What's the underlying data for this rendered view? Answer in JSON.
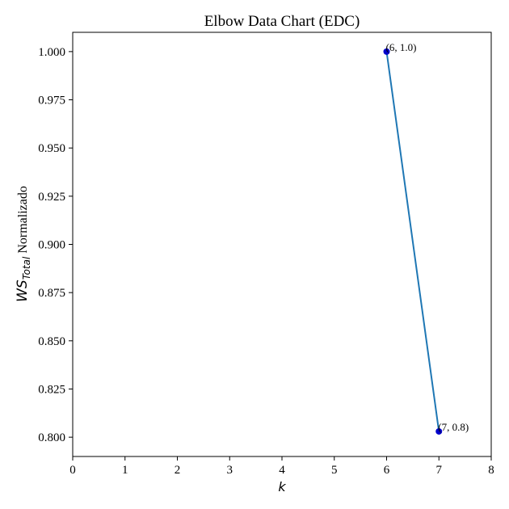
{
  "chart_data": {
    "type": "line",
    "title": "Elbow Data Chart (EDC)",
    "xlabel": "k",
    "ylabel": {
      "main": "WS",
      "subscript": "Total",
      "suffix": " Normalizado"
    },
    "xlim": [
      0,
      8
    ],
    "ylim": [
      0.79,
      1.01
    ],
    "x_ticks": [
      0,
      1,
      2,
      3,
      4,
      5,
      6,
      7,
      8
    ],
    "y_ticks": [
      0.8,
      0.825,
      0.85,
      0.875,
      0.9,
      0.925,
      0.95,
      0.975,
      1.0
    ],
    "y_tick_labels": [
      "0.800",
      "0.825",
      "0.850",
      "0.875",
      "0.900",
      "0.925",
      "0.950",
      "0.975",
      "1.000"
    ],
    "grid": false,
    "series": [
      {
        "x": [
          6,
          7
        ],
        "y": [
          1.0,
          0.803
        ],
        "line_color": "#1f77b4",
        "marker_color": "#0000cc"
      }
    ],
    "annotations": [
      {
        "x": 6,
        "y": 1.0,
        "text": "(6, 1.0)"
      },
      {
        "x": 7,
        "y": 0.803,
        "text": "(7, 0.8)"
      }
    ]
  }
}
